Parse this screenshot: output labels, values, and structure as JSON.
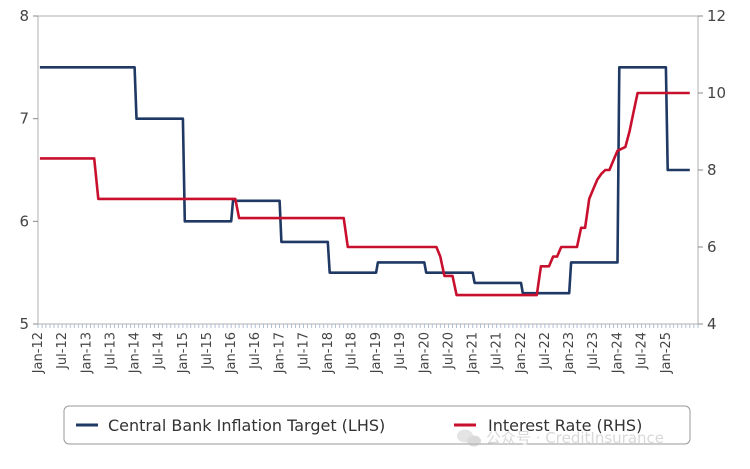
{
  "chart_data": {
    "type": "line",
    "left_axis": {
      "ylim": [
        5,
        8
      ],
      "ticks": [
        "5",
        "6",
        "7",
        "8"
      ]
    },
    "right_axis": {
      "ylim": [
        4,
        12
      ],
      "ticks": [
        "4",
        "6",
        "8",
        "10",
        "12"
      ]
    },
    "x_tick_labels": [
      "Jan-12",
      "Jul-12",
      "Jan-13",
      "Jul-13",
      "Jan-14",
      "Jul-14",
      "Jan-15",
      "Jul-15",
      "Jan-16",
      "Jul-16",
      "Jan-17",
      "Jul-17",
      "Jan-18",
      "Jul-18",
      "Jan-19",
      "Jul-19",
      "Jan-20",
      "Jul-20",
      "Jan-21",
      "Jul-21",
      "Jan-22",
      "Jul-22",
      "Jan-23",
      "Jul-23",
      "Jan-24",
      "Jul-24",
      "Jan-25"
    ],
    "x_range": [
      "Jan-12",
      "Jul-25"
    ],
    "grid": false,
    "legend_position": "bottom",
    "series": [
      {
        "name": "Central Bank Inflation Target (LHS)",
        "axis": "left",
        "color": "#1f3864",
        "points": [
          [
            "2012-01-15",
            7.5
          ],
          [
            "2014-01-01",
            7.5
          ],
          [
            "2014-01-15",
            7.0
          ],
          [
            "2015-01-01",
            7.0
          ],
          [
            "2015-01-15",
            6.0
          ],
          [
            "2016-01-01",
            6.0
          ],
          [
            "2016-01-15",
            6.2
          ],
          [
            "2017-01-01",
            6.2
          ],
          [
            "2017-01-15",
            5.8
          ],
          [
            "2018-01-01",
            5.8
          ],
          [
            "2018-01-15",
            5.5
          ],
          [
            "2019-01-01",
            5.5
          ],
          [
            "2019-01-15",
            5.6
          ],
          [
            "2020-01-01",
            5.6
          ],
          [
            "2020-01-15",
            5.5
          ],
          [
            "2021-01-01",
            5.5
          ],
          [
            "2021-01-15",
            5.4
          ],
          [
            "2022-01-01",
            5.4
          ],
          [
            "2022-01-15",
            5.3
          ],
          [
            "2023-01-01",
            5.3
          ],
          [
            "2023-01-15",
            5.6
          ],
          [
            "2024-01-01",
            5.6
          ],
          [
            "2024-01-15",
            7.5
          ],
          [
            "2025-01-01",
            7.5
          ],
          [
            "2025-01-15",
            6.5
          ],
          [
            "2025-07-01",
            6.5
          ]
        ]
      },
      {
        "name": "Interest Rate (RHS)",
        "axis": "right",
        "color": "#c8102e",
        "points": [
          [
            "2012-01-15",
            8.3
          ],
          [
            "2013-03-01",
            8.3
          ],
          [
            "2013-04-01",
            7.25
          ],
          [
            "2016-02-01",
            7.25
          ],
          [
            "2016-03-01",
            6.75
          ],
          [
            "2018-05-01",
            6.75
          ],
          [
            "2018-06-01",
            6.0
          ],
          [
            "2020-04-01",
            6.0
          ],
          [
            "2020-05-01",
            5.75
          ],
          [
            "2020-06-01",
            5.25
          ],
          [
            "2020-08-01",
            5.25
          ],
          [
            "2020-09-01",
            4.75
          ],
          [
            "2022-05-01",
            4.75
          ],
          [
            "2022-06-01",
            5.5
          ],
          [
            "2022-08-01",
            5.5
          ],
          [
            "2022-09-01",
            5.75
          ],
          [
            "2022-10-01",
            5.75
          ],
          [
            "2022-11-01",
            6.0
          ],
          [
            "2023-03-01",
            6.0
          ],
          [
            "2023-04-01",
            6.5
          ],
          [
            "2023-05-01",
            6.5
          ],
          [
            "2023-06-01",
            7.25
          ],
          [
            "2023-07-01",
            7.5
          ],
          [
            "2023-08-01",
            7.75
          ],
          [
            "2023-09-01",
            7.9
          ],
          [
            "2023-10-01",
            8.0
          ],
          [
            "2023-11-01",
            8.0
          ],
          [
            "2023-12-01",
            8.25
          ],
          [
            "2024-01-01",
            8.5
          ],
          [
            "2024-03-01",
            8.6
          ],
          [
            "2024-04-01",
            9.0
          ],
          [
            "2024-05-01",
            9.5
          ],
          [
            "2024-06-01",
            10.0
          ],
          [
            "2025-07-01",
            10.0
          ]
        ]
      }
    ]
  },
  "legend": {
    "items": [
      {
        "label": "Central Bank Inflation Target (LHS)",
        "color": "#1f3864"
      },
      {
        "label": "Interest Rate (RHS)",
        "color": "#c8102e"
      }
    ]
  },
  "watermark": {
    "text": "公众号 · CreditInsurance",
    "icon": "wechat-icon"
  }
}
